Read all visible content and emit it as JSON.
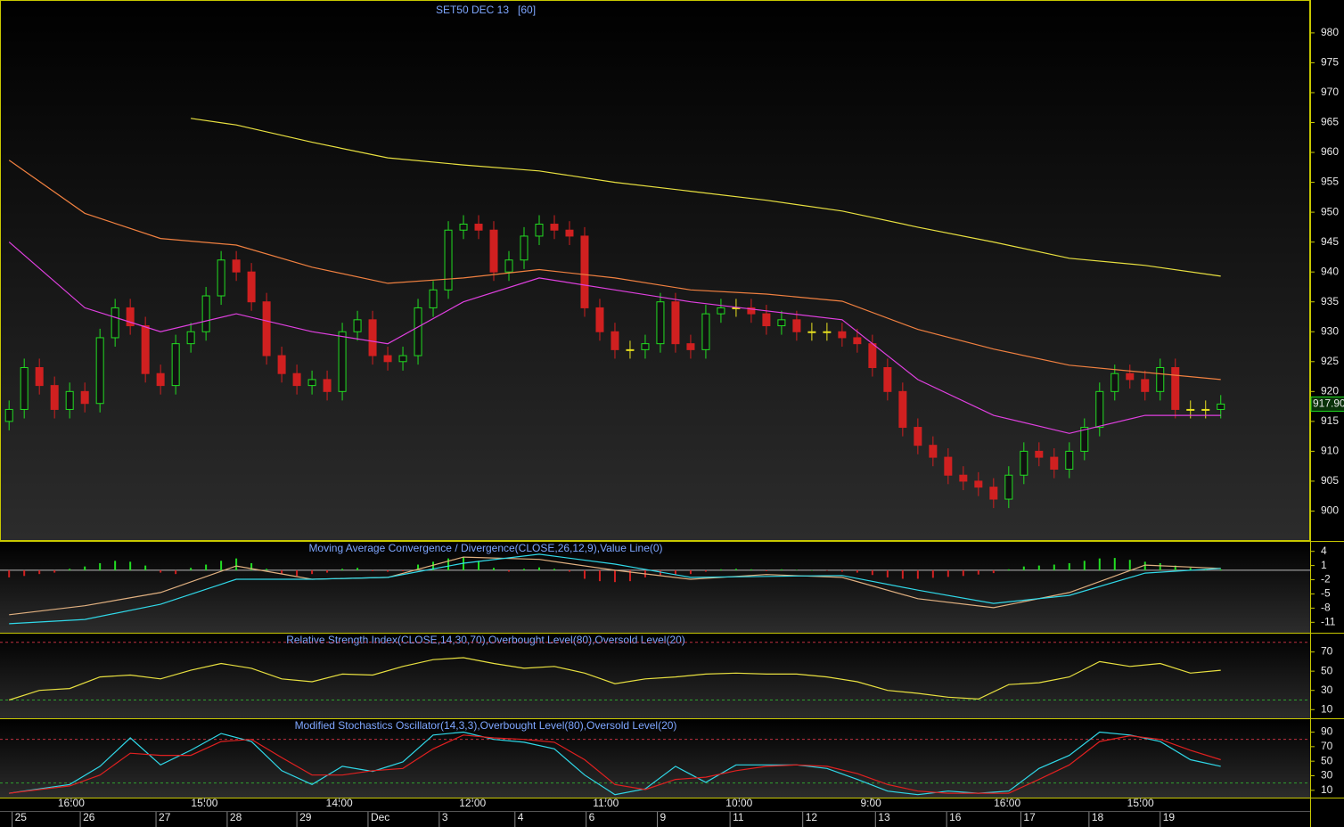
{
  "chart_data": [
    {
      "type": "candlestick",
      "title": "SET50 DEC 13   [60]",
      "up_color": "#22dd22",
      "down_color": "#d02020",
      "doji_color": "#e8e020",
      "open": [
        915,
        917,
        924,
        921,
        917,
        920,
        918,
        929,
        934,
        931,
        923,
        921,
        928,
        930,
        936,
        942,
        940,
        935,
        926,
        923,
        921,
        922,
        920,
        930,
        932,
        926,
        925,
        926,
        934,
        937,
        947,
        948,
        947,
        940,
        942,
        946,
        948,
        947,
        946,
        934,
        930,
        927,
        927,
        928,
        935,
        928,
        927,
        933,
        934,
        934,
        933,
        931,
        932,
        930,
        930,
        930,
        929,
        928,
        924,
        920,
        914,
        911,
        909,
        906,
        905,
        904,
        902,
        906,
        910,
        909,
        907,
        910,
        914,
        920,
        923,
        922,
        920,
        924,
        917,
        917,
        917
      ],
      "high": [
        918.5,
        925.5,
        925.5,
        922.5,
        921.5,
        921.5,
        930.5,
        935.5,
        935.5,
        932.5,
        924.5,
        929.5,
        931.5,
        937.5,
        943.5,
        943.5,
        941.5,
        936.5,
        927.5,
        924.5,
        923.5,
        923.5,
        931.5,
        933.5,
        933.5,
        927.5,
        927.5,
        935.5,
        938.5,
        948.5,
        949.5,
        949.5,
        948.5,
        943.5,
        947.5,
        949.5,
        949.5,
        948.5,
        947.5,
        935.5,
        931.5,
        928.5,
        929.5,
        936.5,
        936.5,
        929.5,
        934.5,
        935.5,
        935.5,
        935.5,
        934.5,
        933.5,
        933.5,
        931.5,
        931.5,
        931.5,
        930.5,
        929.5,
        925.5,
        921.5,
        915.5,
        912.5,
        910.5,
        907.5,
        906.5,
        905.5,
        907.5,
        911.5,
        911.5,
        910.5,
        911.5,
        915.5,
        921.5,
        924.5,
        924.5,
        923.5,
        925.5,
        925.5,
        918.5,
        918.5,
        919.4
      ],
      "low": [
        913.5,
        915.5,
        919.5,
        915.5,
        915.5,
        916.5,
        916.5,
        927.5,
        929.5,
        921.5,
        919.5,
        919.5,
        926.5,
        928.5,
        934.5,
        938.5,
        933.5,
        924.5,
        921.5,
        919.5,
        919.5,
        918.5,
        918.5,
        928.5,
        924.5,
        923.5,
        923.5,
        924.5,
        932.5,
        935.5,
        945.5,
        945.5,
        938.5,
        938.5,
        940.5,
        944.5,
        945.5,
        944.5,
        932.5,
        928.5,
        925.5,
        925.5,
        925.5,
        926.5,
        926.5,
        925.5,
        925.5,
        931.5,
        932.5,
        931.5,
        929.5,
        929.5,
        928.5,
        928.5,
        928.5,
        927.5,
        926.5,
        922.5,
        918.5,
        912.5,
        909.5,
        907.5,
        904.5,
        903.5,
        902.5,
        900.5,
        900.5,
        904.5,
        907.5,
        905.5,
        905.5,
        908.5,
        912.5,
        918.5,
        920.5,
        918.5,
        918.5,
        915.5,
        915.5,
        915.5,
        915.5
      ],
      "close": [
        917,
        924,
        921,
        917,
        920,
        918,
        929,
        934,
        931,
        923,
        921,
        928,
        930,
        936,
        942,
        940,
        935,
        926,
        923,
        921,
        922,
        920,
        930,
        932,
        926,
        925,
        926,
        934,
        937,
        947,
        948,
        947,
        940,
        942,
        946,
        948,
        947,
        946,
        934,
        930,
        927,
        927,
        928,
        935,
        928,
        927,
        933,
        934,
        934,
        933,
        931,
        932,
        930,
        930,
        930,
        929,
        928,
        924,
        920,
        914,
        911,
        909,
        906,
        905,
        904,
        902,
        906,
        910,
        909,
        907,
        910,
        914,
        920,
        923,
        922,
        920,
        924,
        917,
        917,
        917,
        917.9
      ],
      "overlays": [
        {
          "color": "#e040e0",
          "x": [
            0,
            5,
            10,
            15,
            20,
            25,
            30,
            35,
            40,
            45,
            50,
            55,
            60,
            65,
            70,
            75,
            80
          ],
          "values": [
            945,
            934,
            930,
            933,
            930,
            928,
            935,
            939,
            937,
            935,
            933.5,
            932,
            922,
            916,
            913,
            916,
            916
          ]
        },
        {
          "color": "#f08040",
          "x": [
            0,
            5,
            10,
            15,
            20,
            25,
            30,
            35,
            40,
            45,
            50,
            55,
            60,
            65,
            70,
            75,
            80
          ],
          "values": [
            958.7,
            949.8,
            945.6,
            944.5,
            940.8,
            938.1,
            939,
            940.4,
            939,
            937,
            936.3,
            935.1,
            930.4,
            927.1,
            924.4,
            923.2,
            922
          ]
        },
        {
          "color": "#e8e040",
          "x": [
            12,
            15,
            20,
            25,
            30,
            35,
            40,
            45,
            50,
            55,
            60,
            65,
            70,
            75,
            80
          ],
          "values": [
            965.7,
            964.6,
            961.7,
            959.1,
            957.9,
            956.9,
            955,
            953.5,
            952,
            950.2,
            947.5,
            945,
            942.3,
            941.1,
            939.3
          ]
        }
      ],
      "last_value": {
        "value": 917.9,
        "label": "917.90"
      },
      "xlim": [
        -0.6,
        85.9
      ],
      "ylim": [
        895,
        985.5
      ],
      "yticks": [
        900,
        905,
        910,
        915,
        920,
        925,
        930,
        935,
        940,
        945,
        950,
        955,
        960,
        965,
        970,
        975,
        980
      ],
      "time_ticks": [
        {
          "value": 4.1,
          "label": "16:00"
        },
        {
          "value": 12.9,
          "label": "15:00"
        },
        {
          "value": 21.8,
          "label": "14:00"
        },
        {
          "value": 30.6,
          "label": "12:00"
        },
        {
          "value": 39.4,
          "label": "11:00"
        },
        {
          "value": 48.2,
          "label": "10:00"
        },
        {
          "value": 56.9,
          "label": "9:00"
        },
        {
          "value": 65.9,
          "label": "16:00"
        },
        {
          "value": 74.7,
          "label": "15:00"
        }
      ],
      "date_ticks": [
        {
          "value": 0.2,
          "label": "25"
        },
        {
          "value": 4.7,
          "label": "26"
        },
        {
          "value": 9.7,
          "label": "27"
        },
        {
          "value": 14.4,
          "label": "28"
        },
        {
          "value": 19,
          "label": "29"
        },
        {
          "value": 23.7,
          "label": "Dec"
        },
        {
          "value": 28.4,
          "label": "3"
        },
        {
          "value": 33.4,
          "label": "4"
        },
        {
          "value": 38.1,
          "label": "6"
        },
        {
          "value": 42.8,
          "label": "9"
        },
        {
          "value": 47.6,
          "label": "11"
        },
        {
          "value": 52.4,
          "label": "12"
        },
        {
          "value": 57.2,
          "label": "13"
        },
        {
          "value": 61.9,
          "label": "16"
        },
        {
          "value": 66.8,
          "label": "17"
        },
        {
          "value": 71.3,
          "label": "18"
        },
        {
          "value": 76,
          "label": "19"
        }
      ]
    },
    {
      "type": "macd",
      "title": "Moving Average Convergence / Divergence(CLOSE,26,12,9),Value Line(0)",
      "positive_color": "#22dd22",
      "negative_color": "#d02020",
      "value_line": 0,
      "histogram": [
        -1.5,
        -1.2,
        -0.8,
        -0.5,
        0.3,
        0.8,
        1.5,
        2,
        1.8,
        1,
        -0.5,
        -0.8,
        0.5,
        1.2,
        2,
        2.5,
        1.5,
        0.3,
        -0.8,
        -1.2,
        -0.8,
        -0.5,
        0.3,
        0.5,
        -0.2,
        -0.3,
        -0.2,
        1.2,
        1.8,
        2.5,
        2.8,
        2,
        0.5,
        -0.3,
        0.3,
        0.6,
        0.3,
        -0.3,
        -1.8,
        -2.3,
        -2.5,
        -2.3,
        -1.5,
        -1,
        -1,
        -0.8,
        -0.3,
        0.2,
        0.3,
        0.2,
        -0.2,
        0.2,
        0.1,
        0,
        -0.1,
        -0.3,
        -0.5,
        -1,
        -1.5,
        -1.8,
        -1.8,
        -1.6,
        -1.4,
        -1.2,
        -0.9,
        -0.6,
        0.2,
        0.8,
        1,
        1.2,
        1.5,
        2,
        2.5,
        2.6,
        2.2,
        1.8,
        1.5,
        1,
        0.5,
        0.3,
        0.2
      ],
      "x": [
        0,
        5,
        10,
        15,
        20,
        25,
        30,
        35,
        40,
        45,
        50,
        55,
        60,
        65,
        70,
        75,
        80
      ],
      "series": [
        {
          "color": "#e0b080",
          "values": [
            -9.4,
            -7.5,
            -4.7,
            0.9,
            -1.9,
            -1.5,
            2.8,
            2.3,
            0,
            -1.9,
            -0.9,
            -1.5,
            -6,
            -7.9,
            -4.7,
            1.1,
            0.4
          ]
        },
        {
          "color": "#30d8e8",
          "values": [
            -11.3,
            -10.4,
            -7.2,
            -1.9,
            -1.9,
            -1.5,
            1.5,
            3.4,
            1.3,
            -1.5,
            -1.3,
            -1.1,
            -4.2,
            -7,
            -5.3,
            -0.6,
            0.4
          ]
        }
      ],
      "xlim": [
        -0.6,
        85.9
      ],
      "ylim": [
        -13.2,
        6.2
      ],
      "yticks": [
        4,
        1,
        -2,
        -5,
        -8,
        -11
      ]
    },
    {
      "type": "line",
      "title": "Relative Strength Index(CLOSE,14,30,70),Overbought Level(80),Oversold Level(20)",
      "levels": [
        {
          "value": 80,
          "color": "#c03040"
        },
        {
          "value": 20,
          "color": "#30a030"
        }
      ],
      "x": [
        0,
        2,
        4,
        6,
        8,
        10,
        12,
        14,
        16,
        18,
        20,
        22,
        24,
        26,
        28,
        30,
        32,
        34,
        36,
        38,
        40,
        42,
        44,
        46,
        48,
        50,
        52,
        54,
        56,
        58,
        60,
        62,
        64,
        66,
        68,
        70,
        72,
        74,
        76,
        78,
        80
      ],
      "series": [
        {
          "color": "#e8e040",
          "values": [
            20,
            30,
            32,
            44,
            46,
            42,
            51,
            58,
            53,
            42,
            39,
            47,
            46,
            55,
            62,
            64,
            58,
            53,
            55,
            48,
            37,
            42,
            44,
            47,
            48,
            47,
            47,
            44,
            39,
            30,
            27,
            23,
            21,
            36,
            38,
            44,
            60,
            55,
            58,
            48,
            51
          ]
        }
      ],
      "xlim": [
        -0.6,
        85.9
      ],
      "ylim": [
        1,
        90
      ],
      "yticks": [
        70,
        50,
        30,
        10
      ]
    },
    {
      "type": "line",
      "title": "Modified Stochastics Oscillator(14,3,3),Overbought Level(80),Oversold Level(20)",
      "levels": [
        {
          "value": 80,
          "color": "#c03040"
        },
        {
          "value": 20,
          "color": "#30a030"
        }
      ],
      "x": [
        0,
        2,
        4,
        6,
        8,
        10,
        12,
        14,
        16,
        18,
        20,
        22,
        24,
        26,
        28,
        30,
        32,
        34,
        36,
        38,
        40,
        42,
        44,
        46,
        48,
        50,
        52,
        54,
        56,
        58,
        60,
        62,
        64,
        66,
        68,
        70,
        72,
        74,
        76,
        78,
        80
      ],
      "series": [
        {
          "color": "#30d8e8",
          "values": [
            6,
            12,
            18,
            43,
            82,
            45,
            65,
            88,
            77,
            37,
            18,
            43,
            36,
            49,
            86,
            90,
            80,
            76,
            67,
            31,
            4,
            12,
            43,
            21,
            45,
            45,
            45,
            40,
            25,
            9,
            4,
            9,
            6,
            9,
            40,
            58,
            90,
            86,
            77,
            52,
            43
          ]
        },
        {
          "color": "#e02020",
          "values": [
            6,
            11,
            16,
            31,
            61,
            58,
            58,
            77,
            80,
            55,
            31,
            31,
            37,
            40,
            67,
            86,
            82,
            80,
            76,
            52,
            18,
            11,
            25,
            28,
            37,
            43,
            45,
            43,
            33,
            18,
            9,
            6,
            6,
            6,
            25,
            45,
            77,
            85,
            80,
            65,
            52
          ]
        }
      ],
      "xlim": [
        -0.6,
        85.9
      ],
      "ylim": [
        0,
        109
      ],
      "yticks": [
        90,
        70,
        50,
        30,
        10
      ]
    }
  ]
}
